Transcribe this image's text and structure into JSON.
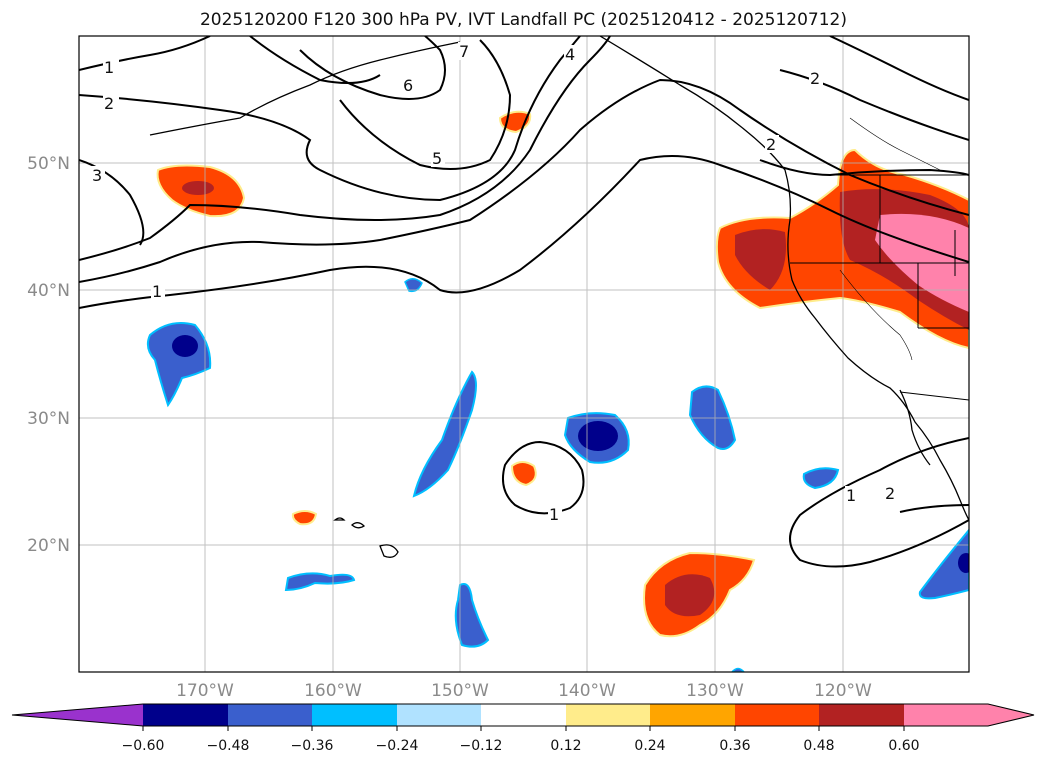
{
  "title": "2025120200 F120 300 hPa PV, IVT Landfall PC (2025120412 - 2025120712)",
  "map": {
    "lat_labels": [
      "50°N",
      "40°N",
      "30°N",
      "20°N"
    ],
    "lon_labels": [
      "170°W",
      "160°W",
      "150°W",
      "140°W",
      "130°W",
      "120°W"
    ],
    "pv_contour_labels": [
      "1",
      "2",
      "3",
      "1",
      "7",
      "6",
      "5",
      "4",
      "2",
      "2",
      "1",
      "1",
      "2"
    ]
  },
  "colorbar": {
    "ticks": [
      "−0.60",
      "−0.48",
      "−0.36",
      "−0.24",
      "−0.12",
      "0.12",
      "0.24",
      "0.36",
      "0.48",
      "0.60"
    ],
    "colors": [
      "#9a32cd",
      "#00008b",
      "#3a5fcd",
      "#00bfff",
      "#b0e2ff",
      "#ffffff",
      "#ffec8b",
      "#ffa500",
      "#ff4500",
      "#b22222",
      "#ff82ab",
      "#ff82ab"
    ]
  }
}
